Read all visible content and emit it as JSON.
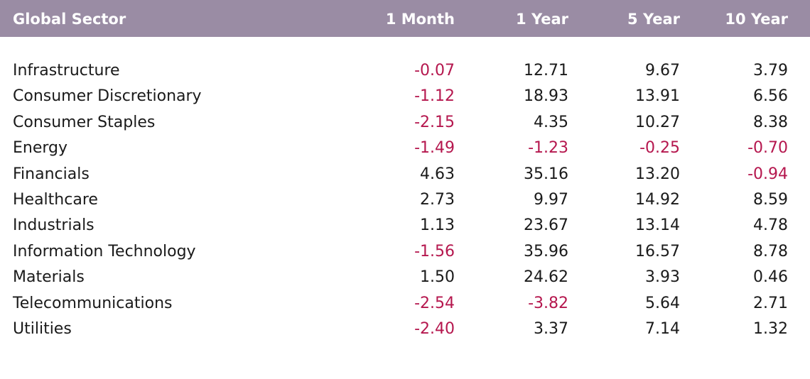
{
  "chart_data": {
    "type": "table",
    "columns": [
      "Global Sector",
      "1 Month",
      "1 Year",
      "5 Year",
      "10 Year"
    ],
    "rows": [
      {
        "sector": "Infrastructure",
        "values": [
          "-0.07",
          "12.71",
          "9.67",
          "3.79"
        ]
      },
      {
        "sector": "Consumer Discretionary",
        "values": [
          "-1.12",
          "18.93",
          "13.91",
          "6.56"
        ]
      },
      {
        "sector": "Consumer Staples",
        "values": [
          "-2.15",
          "4.35",
          "10.27",
          "8.38"
        ]
      },
      {
        "sector": "Energy",
        "values": [
          "-1.49",
          "-1.23",
          "-0.25",
          "-0.70"
        ]
      },
      {
        "sector": "Financials",
        "values": [
          "4.63",
          "35.16",
          "13.20",
          "-0.94"
        ]
      },
      {
        "sector": "Healthcare",
        "values": [
          "2.73",
          "9.97",
          "14.92",
          "8.59"
        ]
      },
      {
        "sector": "Industrials",
        "values": [
          "1.13",
          "23.67",
          "13.14",
          "4.78"
        ]
      },
      {
        "sector": "Information Technology",
        "values": [
          "-1.56",
          "35.96",
          "16.57",
          "8.78"
        ]
      },
      {
        "sector": "Materials",
        "values": [
          "1.50",
          "24.62",
          "3.93",
          "0.46"
        ]
      },
      {
        "sector": "Telecommunications",
        "values": [
          "-2.54",
          "-3.82",
          "5.64",
          "2.71"
        ]
      },
      {
        "sector": "Utilities",
        "values": [
          "-2.40",
          "3.37",
          "7.14",
          "1.32"
        ]
      }
    ]
  },
  "colors": {
    "header_background": "#9a8ca4",
    "header_text": "#ffffff",
    "negative_value": "#b5174e",
    "positive_value": "#1a1a1a"
  }
}
